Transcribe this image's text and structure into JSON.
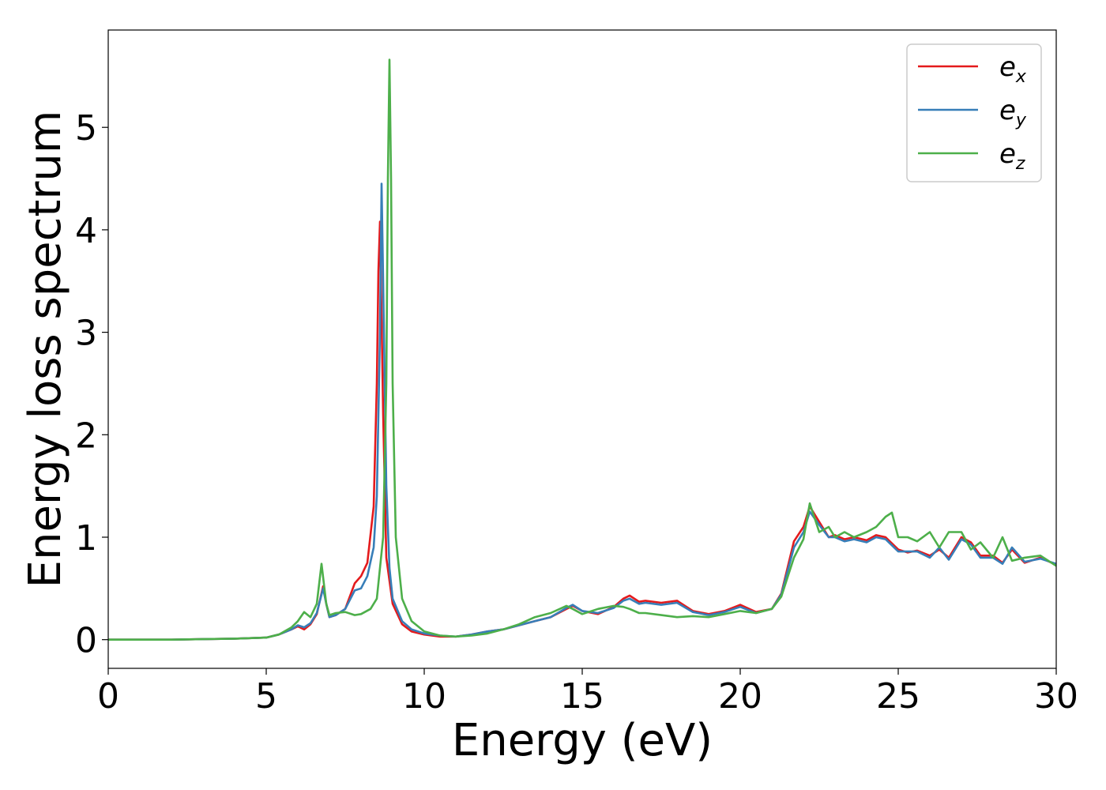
{
  "chart_data": {
    "type": "line",
    "title": "",
    "xlabel": "Energy (eV)",
    "ylabel": "Energy loss spectrum",
    "xlim": [
      0,
      30
    ],
    "ylim": [
      -0.28,
      5.95
    ],
    "xticks": [
      0,
      5,
      10,
      15,
      20,
      25,
      30
    ],
    "yticks": [
      0,
      1,
      2,
      3,
      4,
      5
    ],
    "grid": false,
    "legend_position": "top-right",
    "series": [
      {
        "name": "e_x",
        "name_base": "e",
        "name_sub": "x",
        "color": "#e41a1c",
        "x": [
          0,
          2,
          4,
          5,
          5.4,
          5.8,
          6.0,
          6.2,
          6.4,
          6.6,
          6.8,
          6.9,
          7.0,
          7.2,
          7.5,
          7.8,
          8.0,
          8.2,
          8.4,
          8.5,
          8.55,
          8.6,
          8.7,
          8.8,
          9.0,
          9.3,
          9.6,
          10,
          10.5,
          11,
          11.5,
          12,
          12.5,
          13,
          13.5,
          14,
          14.5,
          14.7,
          15,
          15.5,
          16,
          16.3,
          16.5,
          16.8,
          17,
          17.5,
          18,
          18.5,
          19,
          19.5,
          20,
          20.5,
          21,
          21.3,
          21.7,
          22,
          22.2,
          22.5,
          22.8,
          23,
          23.3,
          23.6,
          24,
          24.3,
          24.6,
          25,
          25.3,
          25.6,
          26,
          26.3,
          26.6,
          27,
          27.3,
          27.6,
          28,
          28.3,
          28.6,
          29,
          29.5,
          30
        ],
        "y": [
          0.0,
          0.0,
          0.01,
          0.02,
          0.05,
          0.1,
          0.13,
          0.1,
          0.15,
          0.25,
          0.52,
          0.35,
          0.22,
          0.24,
          0.3,
          0.55,
          0.62,
          0.75,
          1.3,
          2.5,
          3.6,
          4.08,
          2.2,
          0.8,
          0.35,
          0.15,
          0.08,
          0.05,
          0.03,
          0.03,
          0.05,
          0.08,
          0.1,
          0.14,
          0.18,
          0.22,
          0.3,
          0.33,
          0.28,
          0.25,
          0.32,
          0.4,
          0.43,
          0.37,
          0.38,
          0.36,
          0.38,
          0.28,
          0.25,
          0.28,
          0.34,
          0.27,
          0.3,
          0.45,
          0.96,
          1.1,
          1.3,
          1.15,
          1.0,
          1.02,
          0.98,
          1.0,
          0.97,
          1.02,
          1.0,
          0.88,
          0.85,
          0.87,
          0.82,
          0.88,
          0.8,
          1.0,
          0.95,
          0.82,
          0.82,
          0.75,
          0.88,
          0.75,
          0.8,
          0.73
        ]
      },
      {
        "name": "e_y",
        "name_base": "e",
        "name_sub": "y",
        "color": "#377eb8",
        "x": [
          0,
          2,
          4,
          5,
          5.4,
          5.8,
          6.0,
          6.2,
          6.4,
          6.6,
          6.8,
          6.9,
          7.0,
          7.2,
          7.5,
          7.8,
          8.0,
          8.2,
          8.4,
          8.5,
          8.6,
          8.65,
          8.7,
          8.8,
          8.9,
          9.0,
          9.3,
          9.6,
          10,
          10.5,
          11,
          11.5,
          12,
          12.5,
          13,
          13.5,
          14,
          14.5,
          14.7,
          15,
          15.5,
          16,
          16.3,
          16.5,
          16.8,
          17,
          17.5,
          18,
          18.5,
          19,
          19.5,
          20,
          20.5,
          21,
          21.3,
          21.7,
          22,
          22.2,
          22.5,
          22.8,
          23,
          23.3,
          23.6,
          24,
          24.3,
          24.6,
          25,
          25.3,
          25.6,
          26,
          26.3,
          26.6,
          27,
          27.3,
          27.6,
          28,
          28.3,
          28.6,
          29,
          29.5,
          30
        ],
        "y": [
          0.0,
          0.0,
          0.01,
          0.02,
          0.05,
          0.1,
          0.14,
          0.12,
          0.16,
          0.26,
          0.5,
          0.35,
          0.22,
          0.24,
          0.3,
          0.48,
          0.5,
          0.62,
          0.9,
          1.4,
          3.0,
          4.45,
          3.5,
          1.5,
          0.7,
          0.4,
          0.18,
          0.1,
          0.06,
          0.04,
          0.03,
          0.05,
          0.08,
          0.1,
          0.14,
          0.18,
          0.22,
          0.31,
          0.34,
          0.28,
          0.26,
          0.31,
          0.38,
          0.4,
          0.35,
          0.36,
          0.34,
          0.36,
          0.27,
          0.24,
          0.27,
          0.32,
          0.26,
          0.3,
          0.44,
          0.9,
          1.05,
          1.25,
          1.12,
          1.0,
          1.0,
          0.96,
          0.98,
          0.95,
          1.0,
          0.98,
          0.86,
          0.86,
          0.86,
          0.8,
          0.9,
          0.78,
          0.98,
          0.93,
          0.8,
          0.8,
          0.74,
          0.9,
          0.76,
          0.79,
          0.74
        ]
      },
      {
        "name": "e_z",
        "name_base": "e",
        "name_sub": "z",
        "color": "#4daf4a",
        "x": [
          0,
          2,
          4,
          5,
          5.4,
          5.8,
          6.0,
          6.2,
          6.4,
          6.6,
          6.75,
          6.9,
          7.0,
          7.2,
          7.5,
          7.8,
          8.0,
          8.3,
          8.5,
          8.7,
          8.8,
          8.85,
          8.9,
          8.95,
          9.0,
          9.1,
          9.3,
          9.6,
          10,
          10.5,
          11,
          11.5,
          12,
          12.5,
          13,
          13.5,
          14,
          14.5,
          14.7,
          15,
          15.5,
          16,
          16.3,
          16.5,
          16.8,
          17,
          17.5,
          18,
          18.5,
          19,
          19.5,
          20,
          20.5,
          21,
          21.3,
          21.7,
          22,
          22.2,
          22.5,
          22.8,
          23,
          23.3,
          23.6,
          24,
          24.3,
          24.6,
          24.8,
          25,
          25.3,
          25.6,
          26,
          26.3,
          26.6,
          27,
          27.3,
          27.6,
          28,
          28.3,
          28.6,
          29,
          29.5,
          30
        ],
        "y": [
          0.0,
          0.0,
          0.01,
          0.02,
          0.05,
          0.12,
          0.18,
          0.27,
          0.22,
          0.35,
          0.74,
          0.35,
          0.24,
          0.26,
          0.27,
          0.24,
          0.25,
          0.3,
          0.4,
          1.0,
          2.5,
          4.5,
          5.66,
          4.5,
          2.5,
          1.0,
          0.4,
          0.18,
          0.08,
          0.04,
          0.03,
          0.04,
          0.06,
          0.1,
          0.15,
          0.22,
          0.26,
          0.33,
          0.3,
          0.25,
          0.3,
          0.33,
          0.32,
          0.3,
          0.26,
          0.26,
          0.24,
          0.22,
          0.23,
          0.22,
          0.25,
          0.28,
          0.26,
          0.3,
          0.42,
          0.8,
          0.98,
          1.33,
          1.05,
          1.1,
          1.0,
          1.05,
          1.0,
          1.05,
          1.1,
          1.2,
          1.24,
          1.0,
          1.0,
          0.96,
          1.05,
          0.9,
          1.05,
          1.05,
          0.88,
          0.95,
          0.8,
          1.0,
          0.77,
          0.8,
          0.82,
          0.72
        ]
      }
    ]
  }
}
